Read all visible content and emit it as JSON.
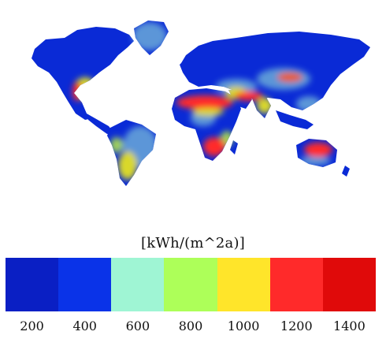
{
  "legend": {
    "unit": "[kWh/(m^2a)]",
    "colors": [
      "#0a1fc4",
      "#0a33e8",
      "#9ff5d4",
      "#adff59",
      "#ffe52a",
      "#ff2a2a",
      "#e00a0a"
    ],
    "ticks": [
      "200",
      "400",
      "600",
      "800",
      "1000",
      "1200",
      "1400"
    ]
  },
  "map": {
    "ocean_color": "#ffffff",
    "land_base_color": "#0a2ad6"
  }
}
